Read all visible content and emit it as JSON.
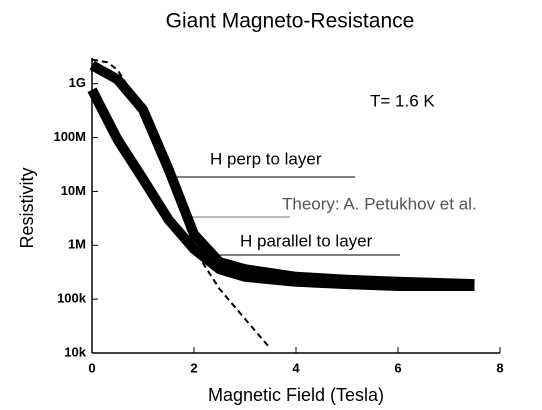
{
  "chart_data": {
    "type": "line",
    "title": "Giant Magneto-Resistance",
    "xlabel": "Magnetic Field (Tesla)",
    "ylabel": "Resistivity",
    "xlim": [
      0,
      8
    ],
    "xticks": [
      0,
      2,
      4,
      6,
      8
    ],
    "ylim": [
      10000,
      3000000000
    ],
    "yscale": "log",
    "yticks": [
      {
        "value": 10000,
        "label": "10k"
      },
      {
        "value": 100000,
        "label": "100k"
      },
      {
        "value": 1000000,
        "label": "1M"
      },
      {
        "value": 10000000,
        "label": "10M"
      },
      {
        "value": 100000000,
        "label": "100M"
      },
      {
        "value": 1000000000,
        "label": "1G"
      }
    ],
    "annotations": [
      "T= 1.6 K",
      "H perp to layer",
      "Theory: A. Petukhov et al.",
      "H parallel to layer"
    ],
    "series": [
      {
        "color": "#000000",
        "linestyle": "solid",
        "x": [
          0,
          0.5,
          1,
          1.5,
          2,
          2.5,
          3,
          4,
          5,
          6,
          7.5
        ],
        "values": [
          2200000000,
          1200000000,
          330000000,
          26000000,
          1600000,
          490000,
          360000,
          260000,
          230000,
          210000,
          190000
        ]
      },
      {
        "color": "#000000",
        "linestyle": "solid",
        "x": [
          0,
          0.5,
          1,
          1.5,
          2,
          2.5,
          3,
          4,
          5,
          6,
          7.5
        ],
        "values": [
          770000000,
          92000000,
          17000000,
          3000000,
          850000,
          360000,
          260000,
          210000,
          190000,
          175000,
          175000
        ]
      },
      {
        "color": "#000000",
        "linestyle": "dashed",
        "x": [
          0,
          0.3,
          0.5,
          1,
          1.5,
          2,
          2.5,
          3,
          3.5
        ],
        "values": [
          2800000000,
          2500000000,
          1800000000,
          330000000,
          26000000,
          850000,
          155000,
          43000,
          12000
        ]
      }
    ]
  }
}
